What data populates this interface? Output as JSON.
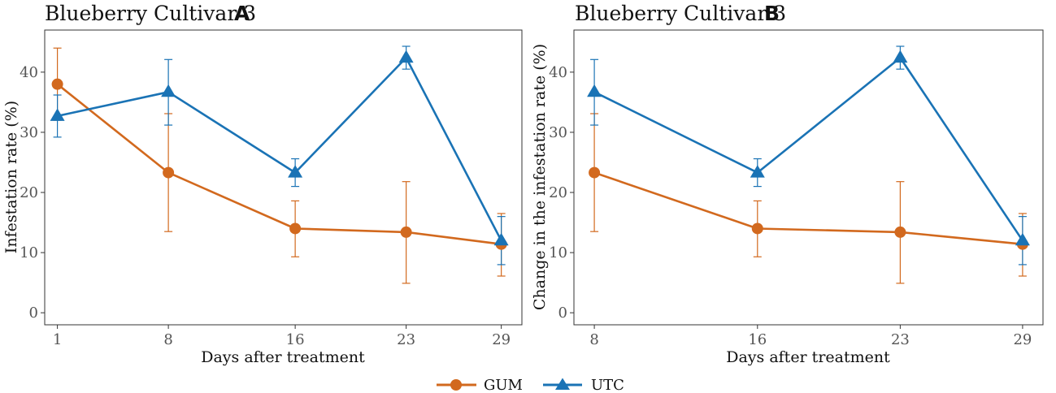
{
  "colors": {
    "GUM": "#d2691e",
    "UTC": "#1a73b5"
  },
  "chart_data": [
    {
      "type": "line",
      "title": "Blueberry Cultivar 3",
      "panel": "A",
      "xlabel": "Days after treatment",
      "ylabel": "Infestation rate (%)",
      "categories": [
        "1",
        "8",
        "16",
        "23",
        "29"
      ],
      "x": [
        1,
        8,
        16,
        23,
        29
      ],
      "xlim": [
        0.2,
        30.3
      ],
      "ylim": [
        -2,
        47
      ],
      "yticks": [
        0,
        10,
        20,
        30,
        40
      ],
      "series": [
        {
          "name": "GUM",
          "marker": "circle",
          "values": [
            38,
            23.3,
            14,
            13.4,
            11.4
          ],
          "err_low": [
            32.0,
            13.5,
            9.3,
            4.9,
            6.1
          ],
          "err_high": [
            44.0,
            33.1,
            18.6,
            21.8,
            16.5
          ]
        },
        {
          "name": "UTC",
          "marker": "triangle",
          "values": [
            32.7,
            36.7,
            23.3,
            42.4,
            12
          ],
          "err_low": [
            29.2,
            31.2,
            21.0,
            40.5,
            8.0
          ],
          "err_high": [
            36.2,
            42.1,
            25.6,
            44.3,
            16.0
          ]
        }
      ]
    },
    {
      "type": "line",
      "title": "Blueberry Cultivar 3",
      "panel": "B",
      "xlabel": "Days after treatment",
      "ylabel": "Change in the infestation rate (%)",
      "categories": [
        "8",
        "16",
        "23",
        "29"
      ],
      "x": [
        8,
        16,
        23,
        29
      ],
      "xlim": [
        7.0,
        30.0
      ],
      "ylim": [
        -2,
        47
      ],
      "yticks": [
        0,
        10,
        20,
        30,
        40
      ],
      "series": [
        {
          "name": "GUM",
          "marker": "circle",
          "values": [
            23.3,
            14,
            13.4,
            11.4
          ],
          "err_low": [
            13.5,
            9.3,
            4.9,
            6.1
          ],
          "err_high": [
            33.1,
            18.6,
            21.8,
            16.5
          ]
        },
        {
          "name": "UTC",
          "marker": "triangle",
          "values": [
            36.7,
            23.3,
            42.4,
            12
          ],
          "err_low": [
            31.2,
            21.0,
            40.5,
            8.0
          ],
          "err_high": [
            42.1,
            25.6,
            44.3,
            16.0
          ]
        }
      ]
    }
  ],
  "legend": {
    "items": [
      "GUM",
      "UTC"
    ]
  }
}
